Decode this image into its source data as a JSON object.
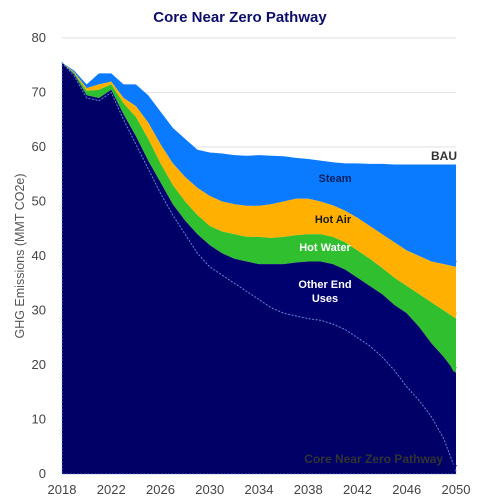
{
  "chart_data": {
    "type": "area",
    "title": "Core Near Zero Pathway",
    "xlabel": "",
    "ylabel": "GHG Emissions (MMT CO2e)",
    "xlim": [
      2018,
      2050
    ],
    "ylim": [
      0,
      80
    ],
    "xticks": [
      2018,
      2022,
      2026,
      2030,
      2034,
      2038,
      2042,
      2046,
      2050
    ],
    "yticks": [
      0,
      10,
      20,
      30,
      40,
      50,
      60,
      70,
      80
    ],
    "grid": "horizontal",
    "legend": "none (labels drawn on areas)",
    "x": [
      2018,
      2019,
      2020,
      2021,
      2022,
      2023,
      2024,
      2025,
      2026,
      2027,
      2028,
      2029,
      2030,
      2031,
      2032,
      2033,
      2034,
      2035,
      2036,
      2037,
      2038,
      2039,
      2040,
      2041,
      2042,
      2043,
      2044,
      2045,
      2046,
      2047,
      2048,
      2049,
      2050
    ],
    "series": [
      {
        "name": "Other End Uses",
        "color": "#000066",
        "values": [
          75.5,
          73,
          69,
          68.5,
          70,
          65,
          60.5,
          56,
          51.5,
          47.5,
          44,
          40.5,
          38,
          36.5,
          35,
          33.5,
          32,
          30.5,
          29.5,
          29,
          28.5,
          28.2,
          27.5,
          26.5,
          25,
          23.5,
          21.5,
          19,
          16,
          13.5,
          10.5,
          6.5,
          0.5
        ]
      },
      {
        "name": "Other End Uses",
        "label_lines": [
          "Other End",
          "Uses"
        ],
        "color": "#00006e",
        "values": [
          75.5,
          73.3,
          69.5,
          69,
          70.5,
          66,
          62,
          57.5,
          53.5,
          49.5,
          46.5,
          44,
          42,
          40.5,
          39.5,
          39,
          38.5,
          38.5,
          38.5,
          38.8,
          39,
          39,
          38.5,
          37.5,
          36,
          34.5,
          33,
          31,
          29.5,
          27,
          24,
          21.5,
          18.5
        ]
      },
      {
        "name": "Hot Water",
        "color": "#2fbf2f",
        "values": [
          75.5,
          73.5,
          70.3,
          70.5,
          71.5,
          68,
          65.5,
          61.5,
          57,
          53,
          50,
          47.5,
          45.5,
          44.5,
          44,
          43.5,
          43.5,
          43.3,
          43.5,
          43.8,
          44,
          44,
          43.5,
          42.5,
          41,
          39.5,
          37.8,
          36,
          34.5,
          33,
          31.5,
          30,
          28.5
        ]
      },
      {
        "name": "Hot Air",
        "color": "#ffb000",
        "values": [
          75.5,
          73.7,
          70.8,
          71.5,
          72,
          69,
          67.5,
          64.5,
          60.5,
          57,
          54.5,
          52.5,
          51,
          50,
          49.5,
          49.2,
          49.2,
          49.5,
          50,
          50.5,
          50.5,
          50,
          49.3,
          48.3,
          47,
          45.5,
          44,
          42.5,
          41,
          40,
          39,
          38.5,
          38
        ]
      },
      {
        "name": "Steam",
        "color": "#0a7bff",
        "values": [
          75.5,
          74,
          71.5,
          73.5,
          73.5,
          71.5,
          71.5,
          69.5,
          66.5,
          63.5,
          61.5,
          59.5,
          59,
          58.8,
          58.5,
          58.4,
          58.5,
          58.4,
          58.3,
          58,
          57.8,
          57.5,
          57.2,
          57,
          57,
          56.9,
          56.9,
          56.8,
          56.8,
          56.8,
          56.8,
          56.8,
          56.8
        ]
      }
    ],
    "bau_label": "BAU",
    "pathway_label": "Core Near Zero Pathway",
    "band_labels": [
      "Steam",
      "Hot Air",
      "Hot Water",
      "Other End",
      "Uses"
    ],
    "reduction_arrow_colors": [
      "#0a7bff",
      "#ffb000",
      "#2fbf2f",
      "#00006e"
    ]
  }
}
